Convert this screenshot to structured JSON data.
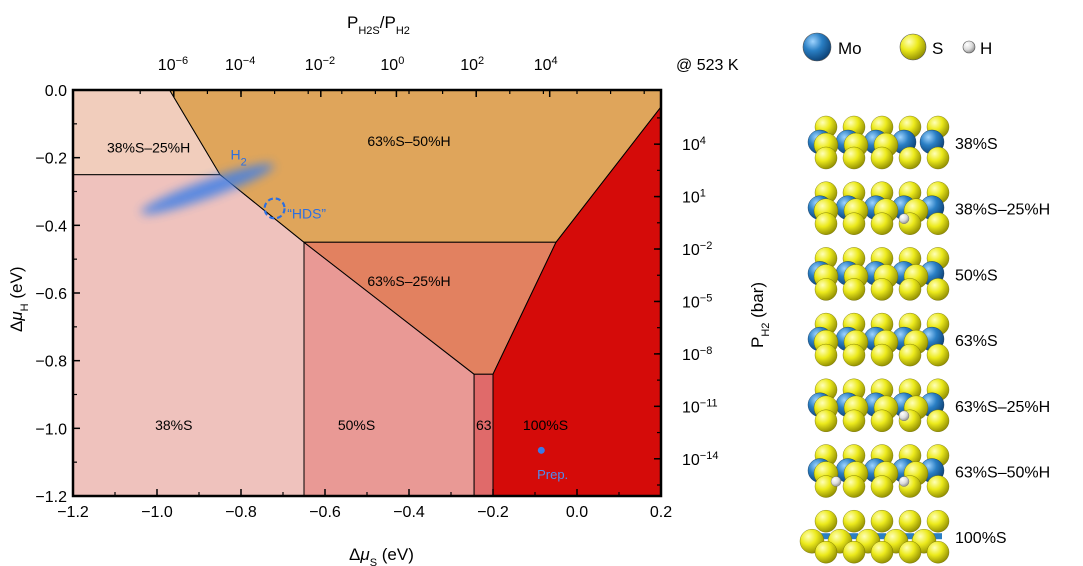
{
  "chart_data": {
    "type": "phase-diagram",
    "title": "",
    "xlabel_main": "Δμ",
    "xlabel_sub": "S",
    "xlabel_unit": " (eV)",
    "ylabel_main": "Δμ",
    "ylabel_sub": "H",
    "ylabel_unit": " (eV)",
    "xlim": [
      -1.2,
      0.2
    ],
    "ylim": [
      -1.2,
      0.0
    ],
    "xticks": [
      -1.2,
      -1.0,
      -0.8,
      -0.6,
      -0.4,
      -0.2,
      0.0,
      0.2
    ],
    "xtick_labels": [
      "−1.2",
      "−1.0",
      "−0.8",
      "−0.6",
      "−0.4",
      "−0.2",
      "0.0",
      "0.2"
    ],
    "yticks": [
      0.0,
      -0.2,
      -0.4,
      -0.6,
      -0.8,
      -1.0,
      -1.2
    ],
    "ytick_labels": [
      "0.0",
      "−0.2",
      "−0.4",
      "−0.6",
      "−0.8",
      "−1.0",
      "−1.2"
    ],
    "top_axis": {
      "label": "P_H2S/P_H2",
      "ticks": [
        {
          "x": -0.96,
          "exponent": "−6"
        },
        {
          "x": -0.8,
          "exponent": "−4"
        },
        {
          "x": -0.61,
          "exponent": "−2"
        },
        {
          "x": -0.43,
          "exponent": "0"
        },
        {
          "x": -0.24,
          "exponent": "2"
        },
        {
          "x": -0.065,
          "exponent": "4"
        }
      ]
    },
    "right_axis": {
      "label": "P_H2 (bar)",
      "ticks": [
        {
          "y": -0.16,
          "exponent": "4"
        },
        {
          "y": -0.315,
          "exponent": "1"
        },
        {
          "y": -0.47,
          "exponent": "−2"
        },
        {
          "y": -0.625,
          "exponent": "−5"
        },
        {
          "y": -0.78,
          "exponent": "−8"
        },
        {
          "y": -0.935,
          "exponent": "−11"
        },
        {
          "y": -1.09,
          "exponent": "−14"
        }
      ]
    },
    "temperature_label": "@ 523 K",
    "regions": [
      {
        "name": "38%S",
        "color": "#efc2bd",
        "label_at": [
          -0.96,
          -0.99
        ],
        "polygon": [
          [
            -1.2,
            -0.25
          ],
          [
            -0.85,
            -0.25
          ],
          [
            -0.65,
            -0.45
          ],
          [
            -0.65,
            -1.2
          ],
          [
            -1.2,
            -1.2
          ]
        ]
      },
      {
        "name": "38%S–25%H",
        "color": "#f1cdbc",
        "label_at": [
          -1.02,
          -0.17
        ],
        "polygon": [
          [
            -1.2,
            0.0
          ],
          [
            -0.97,
            0.0
          ],
          [
            -0.85,
            -0.25
          ],
          [
            -1.2,
            -0.25
          ]
        ]
      },
      {
        "name": "63%S–50%H",
        "color": "#dfa55b",
        "label_at": [
          -0.4,
          -0.15
        ],
        "polygon": [
          [
            -0.97,
            0.0
          ],
          [
            0.2,
            0.0
          ],
          [
            0.2,
            -0.05
          ],
          [
            -0.05,
            -0.45
          ],
          [
            -0.65,
            -0.45
          ],
          [
            -0.85,
            -0.25
          ]
        ]
      },
      {
        "name": "50%S",
        "color": "#e99995",
        "label_at": [
          -0.525,
          -0.99
        ],
        "polygon": [
          [
            -0.65,
            -0.45
          ],
          [
            -0.65,
            -1.2
          ],
          [
            -0.245,
            -1.2
          ],
          [
            -0.245,
            -0.84
          ]
        ]
      },
      {
        "name": "63%S–25%H",
        "color": "#e28160",
        "label_at": [
          -0.4,
          -0.565
        ],
        "polygon": [
          [
            -0.65,
            -0.45
          ],
          [
            -0.05,
            -0.45
          ],
          [
            -0.2,
            -0.84
          ],
          [
            -0.245,
            -0.84
          ]
        ]
      },
      {
        "name": "63",
        "color": "#e06a6a",
        "label_at": [
          -0.222,
          -0.99
        ],
        "polygon": [
          [
            -0.245,
            -0.84
          ],
          [
            -0.2,
            -0.84
          ],
          [
            -0.2,
            -1.2
          ],
          [
            -0.245,
            -1.2
          ]
        ]
      },
      {
        "name": "100%S",
        "color": "#d50b09",
        "label_at": [
          -0.075,
          -0.99
        ],
        "polygon": [
          [
            -0.2,
            -0.84
          ],
          [
            -0.05,
            -0.45
          ],
          [
            0.2,
            -0.05
          ],
          [
            0.2,
            -1.2
          ],
          [
            -0.2,
            -1.2
          ]
        ]
      }
    ],
    "annotations": [
      {
        "name": "h2-label",
        "text": "H",
        "sub": "2",
        "x": -0.825,
        "y": -0.19,
        "color": "#2d6fe0"
      },
      {
        "name": "hds-label",
        "text": "“HDS”",
        "x": -0.69,
        "y": -0.365,
        "color": "#2d6fe0"
      },
      {
        "name": "prep-label",
        "text": "Prep.",
        "x": -0.095,
        "y": -1.135,
        "color": "#4e8df0"
      }
    ],
    "markers": [
      {
        "name": "hds-circle",
        "type": "dashed-circle",
        "x": -0.72,
        "y": -0.35,
        "color": "#2d6fe0"
      },
      {
        "name": "prep-point",
        "type": "dot",
        "x": -0.085,
        "y": -1.065,
        "color": "#3a78e8"
      }
    ],
    "band": {
      "name": "h2-band",
      "x1": -1.02,
      "y1": -0.355,
      "x2": -0.74,
      "y2": -0.23,
      "color": "#3f7fe6"
    }
  },
  "legend": {
    "items": [
      {
        "symbol": "Mo",
        "label": "Mo",
        "color": "#1f6fb5"
      },
      {
        "symbol": "S",
        "label": "S",
        "color": "#e6e600"
      },
      {
        "symbol": "H",
        "label": "H",
        "color": "#e8e8e8"
      }
    ]
  },
  "structures": [
    {
      "label": "38%S",
      "h": []
    },
    {
      "label": "38%S–25%H",
      "h": [
        2
      ]
    },
    {
      "label": "50%S",
      "h": []
    },
    {
      "label": "63%S",
      "h": []
    },
    {
      "label": "63%S–25%H",
      "h": [
        2
      ]
    },
    {
      "label": "63%S–50%H",
      "h": [
        0,
        2
      ]
    },
    {
      "label": "100%S",
      "h": []
    }
  ]
}
